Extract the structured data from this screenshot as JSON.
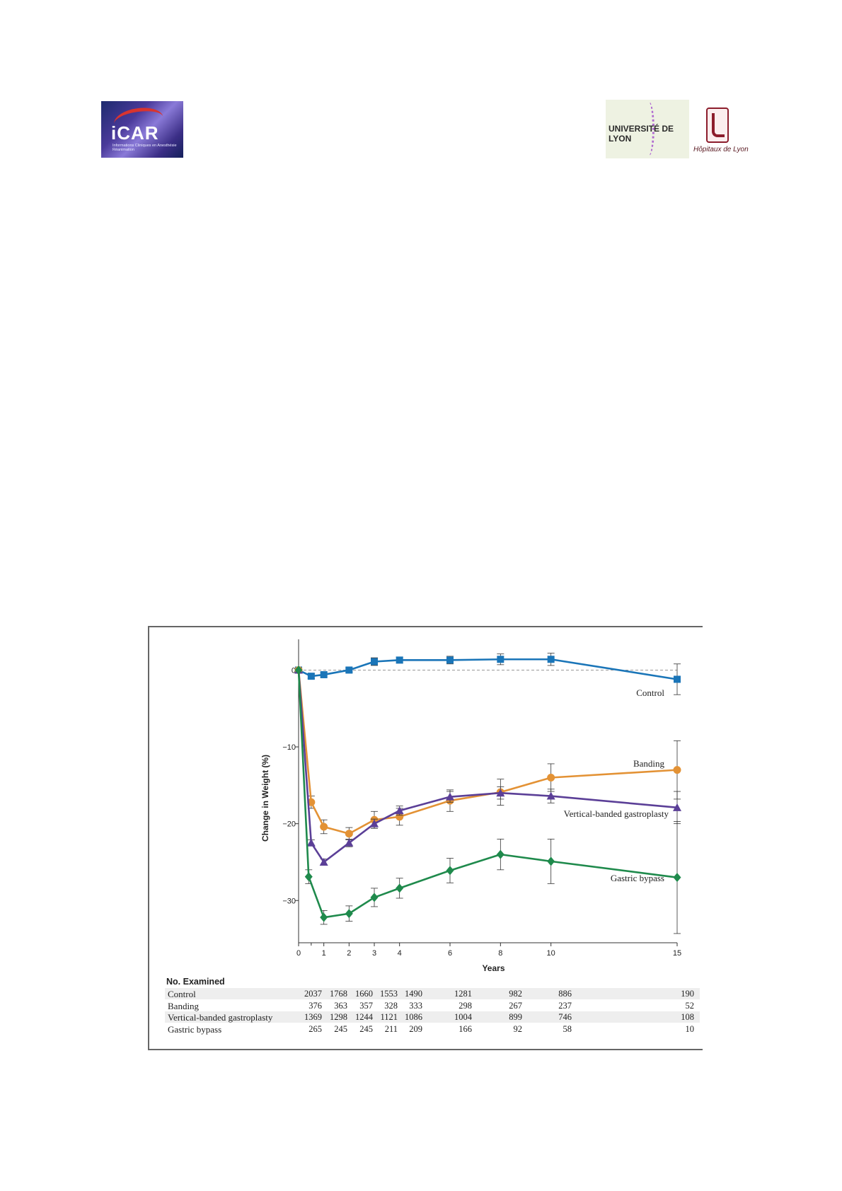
{
  "logos": {
    "icar": {
      "word": "iCAR",
      "subtitle": "Informations Cliniques en Anesthésie Réanimation"
    },
    "lyon": {
      "word": "UNIVERSITÉ DE LYON"
    },
    "hcl": {
      "word": "Hôpitaux de Lyon"
    }
  },
  "chart_data": {
    "type": "line",
    "title": "",
    "xlabel": "Years",
    "ylabel": "Change in Weight (%)",
    "xlim": [
      0,
      15
    ],
    "ylim": [
      -35.5,
      4
    ],
    "xticks": [
      0,
      1,
      2,
      3,
      4,
      6,
      8,
      10,
      15
    ],
    "yticks": [
      0,
      -10,
      -20,
      -30
    ],
    "ytick_labels": [
      "0",
      "−10",
      "−20",
      "−30"
    ],
    "reference_line": {
      "y": 0,
      "style": "dashed"
    },
    "grid": false,
    "series": [
      {
        "name": "Control",
        "color": "#1a75b8",
        "marker": "square",
        "x": [
          0,
          0.5,
          1,
          2,
          3,
          4,
          6,
          8,
          10,
          15
        ],
        "y": [
          0,
          -0.8,
          -0.6,
          0,
          1.1,
          1.3,
          1.3,
          1.4,
          1.4,
          -1.2
        ],
        "err": [
          0,
          0.3,
          0.3,
          0.3,
          0.5,
          0.4,
          0.5,
          0.7,
          0.8,
          2.0
        ]
      },
      {
        "name": "Banding",
        "color": "#e39235",
        "marker": "circle",
        "x": [
          0,
          0.5,
          1,
          2,
          3,
          4,
          6,
          8,
          10,
          15
        ],
        "y": [
          0,
          -17.2,
          -20.4,
          -21.3,
          -19.5,
          -19.1,
          -17.0,
          -15.9,
          -14.0,
          -13.0
        ],
        "err": [
          0,
          0.8,
          0.9,
          0.8,
          1.1,
          1.1,
          1.4,
          1.7,
          1.8,
          3.8
        ]
      },
      {
        "name": "Vertical-banded gastroplasty",
        "color": "#5b3f97",
        "marker": "triangle",
        "x": [
          0,
          0.5,
          1,
          2,
          3,
          4,
          6,
          8,
          10,
          15
        ],
        "y": [
          0,
          -22.5,
          -25.0,
          -22.5,
          -20.0,
          -18.3,
          -16.5,
          -16.0,
          -16.4,
          -17.9
        ],
        "err": [
          0,
          0.4,
          0.4,
          0.5,
          0.6,
          0.6,
          0.7,
          0.8,
          0.9,
          2.1
        ]
      },
      {
        "name": "Gastric bypass",
        "color": "#1f8a4c",
        "marker": "diamond",
        "x": [
          0,
          0.4,
          1,
          2,
          3,
          4,
          6,
          8,
          10,
          15
        ],
        "y": [
          0,
          -26.9,
          -32.2,
          -31.7,
          -29.6,
          -28.4,
          -26.1,
          -24.0,
          -24.9,
          -27.0
        ],
        "err": [
          0,
          0.9,
          0.9,
          1.0,
          1.2,
          1.3,
          1.6,
          2.0,
          2.9,
          7.3
        ]
      }
    ]
  },
  "table": {
    "title": "No. Examined",
    "years": [
      0,
      1,
      2,
      3,
      4,
      6,
      8,
      10,
      15
    ],
    "rows": [
      {
        "name": "Control",
        "values": [
          "2037",
          "1768",
          "1660",
          "1553",
          "1490",
          "1281",
          "982",
          "886",
          "190"
        ]
      },
      {
        "name": "Banding",
        "values": [
          "376",
          "363",
          "357",
          "328",
          "333",
          "298",
          "267",
          "237",
          "52"
        ]
      },
      {
        "name": "Vertical-banded gastroplasty",
        "values": [
          "1369",
          "1298",
          "1244",
          "1121",
          "1086",
          "1004",
          "899",
          "746",
          "108"
        ]
      },
      {
        "name": "Gastric bypass",
        "values": [
          "265",
          "245",
          "245",
          "211",
          "209",
          "166",
          "92",
          "58",
          "10"
        ]
      }
    ]
  }
}
